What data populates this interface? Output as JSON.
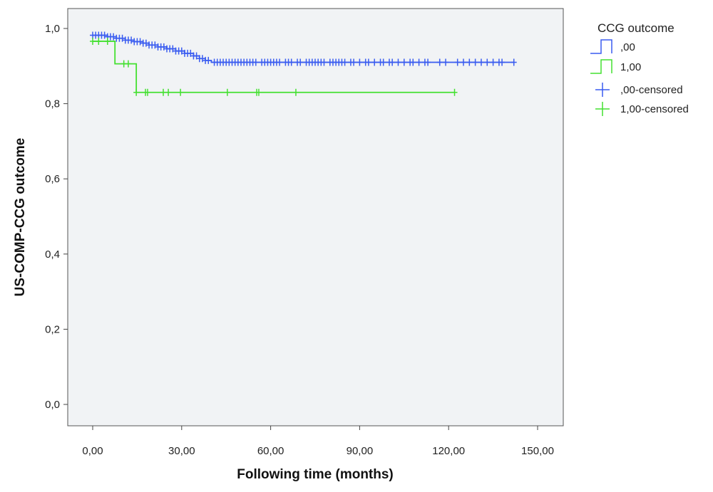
{
  "chart_data": {
    "type": "line",
    "subtype": "kaplan-meier",
    "xlabel": "Following time (months)",
    "ylabel": "US-COMP-CCG outcome",
    "xlim": [
      -7,
      163
    ],
    "ylim": [
      -0.05,
      1.05
    ],
    "xticks": [
      0,
      30,
      60,
      90,
      120,
      150
    ],
    "xtick_labels": [
      "0,00",
      "30,00",
      "60,00",
      "90,00",
      "120,00",
      "150,00"
    ],
    "yticks": [
      0,
      0.2,
      0.4,
      0.6,
      0.8,
      1.0
    ],
    "ytick_labels": [
      "0,0",
      "0,2",
      "0,4",
      "0,6",
      "0,8",
      "1,0"
    ],
    "grid": false,
    "legend": {
      "title": "CCG outcome",
      "placement": "right",
      "entries": [
        ",00",
        "1,00",
        ",00-censored",
        "1,00-censored"
      ]
    },
    "series": [
      {
        "name": ",00",
        "color": "#3a5cf0",
        "steps": [
          [
            0,
            0.982
          ],
          [
            5,
            0.978
          ],
          [
            8,
            0.974
          ],
          [
            11,
            0.969
          ],
          [
            14,
            0.965
          ],
          [
            17,
            0.961
          ],
          [
            19,
            0.956
          ],
          [
            22,
            0.951
          ],
          [
            25,
            0.946
          ],
          [
            28,
            0.94
          ],
          [
            31,
            0.934
          ],
          [
            34,
            0.927
          ],
          [
            36,
            0.92
          ],
          [
            38,
            0.915
          ],
          [
            40,
            0.91
          ]
        ],
        "end": 142,
        "censored": [
          0,
          1,
          2,
          3,
          4,
          5,
          6,
          7,
          8,
          9,
          10,
          11,
          12,
          13,
          14,
          15,
          16,
          17,
          18,
          19,
          20,
          21,
          22,
          23,
          24,
          25,
          26,
          27,
          28,
          29,
          30,
          31,
          32,
          33,
          34,
          35,
          36,
          37,
          38,
          39,
          41,
          42,
          43,
          44,
          45,
          46,
          47,
          48,
          49,
          50,
          51,
          52,
          53,
          54,
          55,
          57,
          58,
          59,
          60,
          61,
          62,
          63,
          65,
          66,
          67,
          69,
          70,
          72,
          73,
          74,
          75,
          76,
          77,
          78,
          80,
          81,
          82,
          83,
          84,
          85,
          87,
          88,
          90,
          92,
          93,
          95,
          97,
          98,
          100,
          101,
          103,
          105,
          107,
          108,
          110,
          112,
          113,
          117,
          119,
          123,
          125,
          127,
          129,
          131,
          133,
          135,
          137,
          138,
          142
        ]
      },
      {
        "name": "1,00",
        "color": "#44e030",
        "steps": [
          [
            0,
            0.966
          ],
          [
            7.5,
            0.906
          ],
          [
            14.7,
            0.83
          ]
        ],
        "end": 122,
        "censored": [
          0,
          2,
          5,
          10.5,
          12,
          14.7,
          17.8,
          18.5,
          23.8,
          25.5,
          29.6,
          45.4,
          55.3,
          56,
          68.5,
          122
        ]
      }
    ]
  }
}
